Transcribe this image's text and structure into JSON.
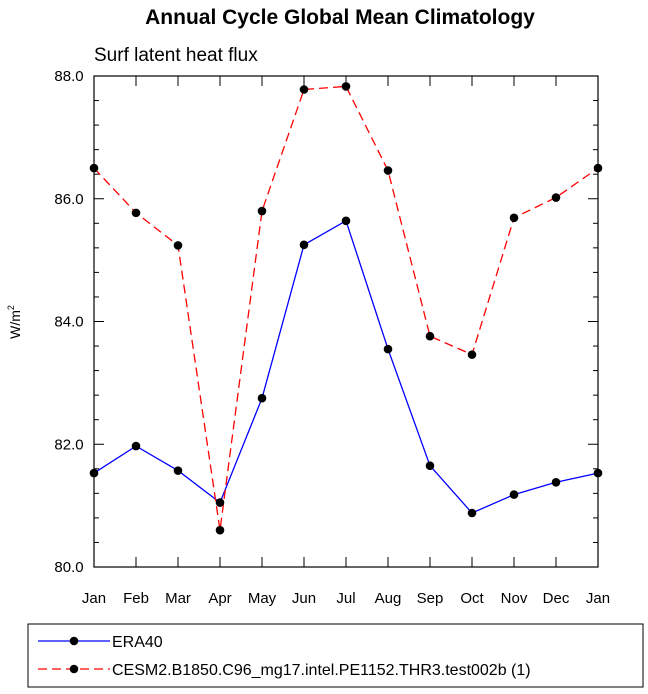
{
  "chart_data": {
    "type": "line",
    "title": "Annual Cycle Global Mean Climatology",
    "subtitle": "Surf latent heat flux",
    "ylabel_base": "W/m",
    "ylabel_sup": "2",
    "xlabel": "",
    "categories": [
      "Jan",
      "Feb",
      "Mar",
      "Apr",
      "May",
      "Jun",
      "Jul",
      "Aug",
      "Sep",
      "Oct",
      "Nov",
      "Dec",
      "Jan"
    ],
    "ylim": [
      80.0,
      88.0
    ],
    "yticks": [
      "80.0",
      "82.0",
      "84.0",
      "86.0",
      "88.0"
    ],
    "grid": false,
    "legend_position": "bottom",
    "series": [
      {
        "name": "ERA40",
        "color": "#0000ff",
        "dash": "solid",
        "marker": "dot",
        "values": [
          81.53,
          81.97,
          81.57,
          81.05,
          82.75,
          85.25,
          85.64,
          83.55,
          81.65,
          80.88,
          81.18,
          81.38,
          81.53
        ]
      },
      {
        "name": "CESM2.B1850.C96_mg17.intel.PE1152.THR3.test002b (1)",
        "color": "#ff0000",
        "dash": "dashed",
        "marker": "dot",
        "values": [
          86.5,
          85.77,
          85.24,
          80.6,
          85.8,
          87.78,
          87.83,
          86.46,
          83.76,
          83.46,
          85.69,
          86.02,
          86.5
        ]
      }
    ]
  }
}
